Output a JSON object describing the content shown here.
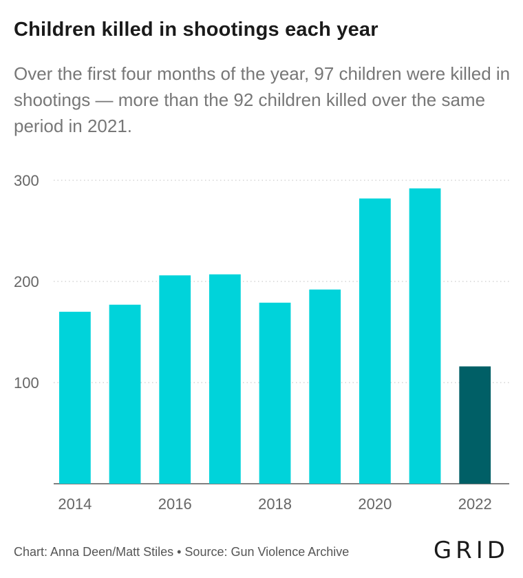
{
  "title": "Children killed in shootings each year",
  "subtitle": "Over the first four months of the year, 97 children were killed in shootings — more than the 92 children killed over the same period in 2021.",
  "footer": "Chart: Anna Deen/Matt Stiles • Source: Gun Violence Archive",
  "logo": "GRID",
  "colors": {
    "bar": "#00d3da",
    "highlight": "#005f66",
    "grid": "#cccccc",
    "axis": "#666666"
  },
  "chart_data": {
    "type": "bar",
    "categories": [
      "2014",
      "2015",
      "2016",
      "2017",
      "2018",
      "2019",
      "2020",
      "2021",
      "2022"
    ],
    "values": [
      170,
      177,
      206,
      207,
      179,
      192,
      282,
      292,
      116
    ],
    "highlighted": [
      "2022"
    ],
    "x_tick_labels": [
      "2014",
      "2016",
      "2018",
      "2020",
      "2022"
    ],
    "y_ticks": [
      100,
      200,
      300
    ],
    "ylim": [
      0,
      300
    ],
    "grid": true,
    "xlabel": "",
    "ylabel": ""
  }
}
